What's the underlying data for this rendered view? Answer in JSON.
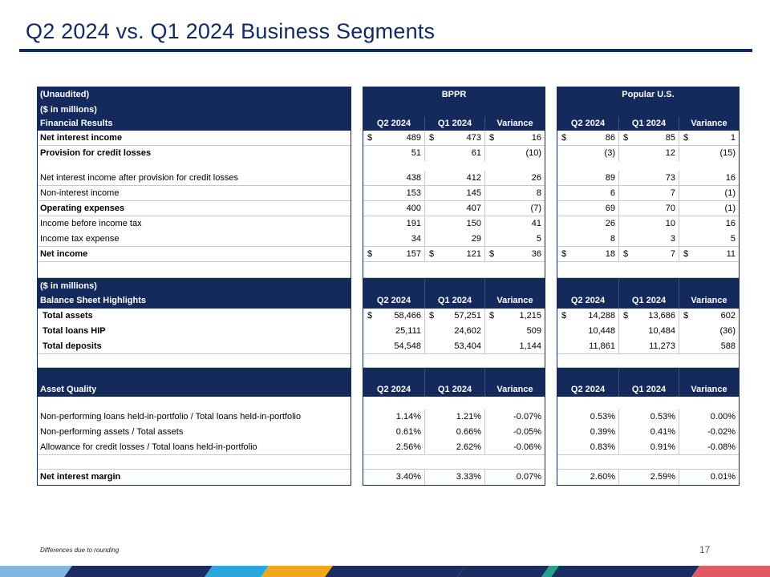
{
  "slide": {
    "title": "Q2 2024 vs. Q1 2024 Business Segments",
    "footnote": "Differences due to rounding",
    "page_number": "17"
  },
  "labels": {
    "unaudited": "(Unaudited)",
    "in_millions": "($ in millions)",
    "financial_results": "Financial Results",
    "net_interest_income": "Net interest income",
    "provision": "Provision for credit losses",
    "nii_after_provision": "Net interest income after provision for credit losses",
    "non_interest_income": "Non-interest income",
    "operating_expenses": "Operating expenses",
    "income_before_tax": "Income before income tax",
    "income_tax_expense": "Income tax expense",
    "net_income": "Net income",
    "in_millions_2": "($ in millions)",
    "balance_sheet": "Balance Sheet Highlights",
    "total_assets": "Total assets",
    "total_loans": "Total loans HIP",
    "total_deposits": "Total deposits",
    "asset_quality": "Asset Quality",
    "npl_ratio": "Non-performing loans held-in-portfolio / Total loans held-in-portfolio",
    "npa_ratio": "Non-performing assets / Total assets",
    "allowance_ratio": "Allowance for credit losses / Total loans held-in-portfolio",
    "nim": "Net interest margin"
  },
  "bppr": {
    "name": "BPPR",
    "col_q2": "Q2 2024",
    "col_q1": "Q1 2024",
    "col_var": "Variance",
    "col_q2_b": "Q2 2024",
    "col_q1_b": "Q1 2024",
    "col_var_b": "Variance",
    "col_q2_c": "Q2 2024",
    "col_q1_c": "Q1 2024",
    "col_var_c": "Variance",
    "cur": "$",
    "nii": [
      "489",
      "473",
      "16"
    ],
    "provision": [
      "51",
      "61",
      "(10)"
    ],
    "nii_after": [
      "438",
      "412",
      "26"
    ],
    "non_int": [
      "153",
      "145",
      "8"
    ],
    "opex": [
      "400",
      "407",
      "(7)"
    ],
    "ibt": [
      "191",
      "150",
      "41"
    ],
    "tax": [
      "34",
      "29",
      "5"
    ],
    "net_income": [
      "157",
      "121",
      "36"
    ],
    "assets": [
      "58,466",
      "57,251",
      "1,215"
    ],
    "loans": [
      "25,111",
      "24,602",
      "509"
    ],
    "deposits": [
      "54,548",
      "53,404",
      "1,144"
    ],
    "npl": [
      "1.14%",
      "1.21%",
      "-0.07%"
    ],
    "npa": [
      "0.61%",
      "0.66%",
      "-0.05%"
    ],
    "allowance": [
      "2.56%",
      "2.62%",
      "-0.06%"
    ],
    "nim": [
      "3.40%",
      "3.33%",
      "0.07%"
    ]
  },
  "popular_us": {
    "name": "Popular U.S.",
    "col_q2": "Q2 2024",
    "col_q1": "Q1 2024",
    "col_var": "Variance",
    "col_q2_b": "Q2 2024",
    "col_q1_b": "Q1 2024",
    "col_var_b": "Variance",
    "col_q2_c": "Q2 2024",
    "col_q1_c": "Q1 2024",
    "col_var_c": "Variance",
    "cur": "$",
    "nii": [
      "86",
      "85",
      "1"
    ],
    "provision": [
      "(3)",
      "12",
      "(15)"
    ],
    "nii_after": [
      "89",
      "73",
      "16"
    ],
    "non_int": [
      "6",
      "7",
      "(1)"
    ],
    "opex": [
      "69",
      "70",
      "(1)"
    ],
    "ibt": [
      "26",
      "10",
      "16"
    ],
    "tax": [
      "8",
      "3",
      "5"
    ],
    "net_income": [
      "18",
      "7",
      "11"
    ],
    "assets": [
      "14,288",
      "13,686",
      "602"
    ],
    "loans": [
      "10,448",
      "10,484",
      "(36)"
    ],
    "deposits": [
      "11,861",
      "11,273",
      "588"
    ],
    "npl": [
      "0.53%",
      "0.53%",
      "0.00%"
    ],
    "npa": [
      "0.39%",
      "0.41%",
      "-0.02%"
    ],
    "allowance": [
      "0.83%",
      "0.91%",
      "-0.08%"
    ],
    "nim": [
      "2.60%",
      "2.59%",
      "0.01%"
    ]
  },
  "colors": {
    "navy": "#142a5c",
    "title": "#0f2a66"
  }
}
